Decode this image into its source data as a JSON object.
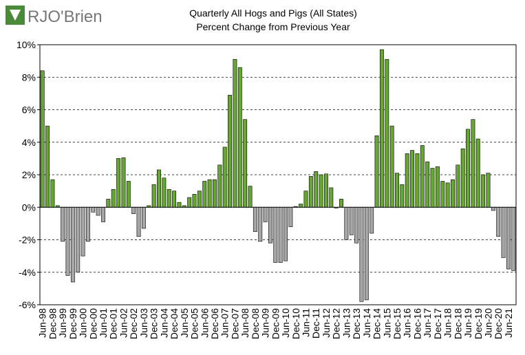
{
  "logo": "RJO'Brien",
  "chart_data": {
    "type": "bar",
    "title": "Quarterly All Hogs and Pigs (All States)",
    "subtitle": "Percent Change from Previous Year",
    "categories": [
      "Jun-98",
      null,
      "Dec-98",
      null,
      "Jun-99",
      null,
      "Dec-99",
      null,
      "Jun-00",
      null,
      "Dec-00",
      null,
      "Jun-01",
      null,
      "Dec-01",
      null,
      "Jun-02",
      null,
      "Dec-02",
      null,
      "Jun-03",
      null,
      "Dec-03",
      null,
      "Jun-04",
      null,
      "Dec-04",
      null,
      "Jun-05",
      null,
      "Dec-05",
      null,
      "Jun-06",
      null,
      "Dec-06",
      null,
      "Jun-07",
      null,
      "Dec-07",
      null,
      "Jun-08",
      null,
      "Dec-08",
      null,
      "Jun-09",
      null,
      "Dec-09",
      null,
      "Jun-10",
      null,
      "Dec-10",
      null,
      "Jun-11",
      null,
      "Dec-11",
      null,
      "Jun-12",
      null,
      "Dec-12",
      null,
      "Jun-13",
      null,
      "Dec-13",
      null,
      "Jun-14",
      null,
      "Dec-14",
      null,
      "Jun-15",
      null,
      "Dec-15",
      null,
      "Jun-16",
      null,
      "Dec-16",
      null,
      "Jun-17",
      null,
      "Dec-17",
      null,
      "Jun-18",
      null,
      "Dec-18",
      null,
      "Jun-19",
      null,
      "Dec-19",
      null,
      "Jun-20",
      null,
      "Dec-20",
      null,
      "Jun-21",
      null
    ],
    "values": [
      8.4,
      5.0,
      1.7,
      0.1,
      -2.1,
      -4.2,
      -4.6,
      -4.0,
      -3.0,
      -2.1,
      -0.3,
      -0.5,
      -0.9,
      0.5,
      1.1,
      3.0,
      3.05,
      1.6,
      -0.4,
      -1.8,
      -1.3,
      0.1,
      1.4,
      2.3,
      1.8,
      1.1,
      1.0,
      0.3,
      0.1,
      0.6,
      0.8,
      1.0,
      1.6,
      1.7,
      1.7,
      2.6,
      3.7,
      6.9,
      9.1,
      8.6,
      5.4,
      1.3,
      -1.5,
      -2.1,
      -0.9,
      -2.2,
      -3.4,
      -3.4,
      -3.3,
      -1.2,
      0.05,
      0.2,
      1.0,
      1.9,
      2.2,
      2.0,
      2.05,
      1.2,
      -0.05,
      0.5,
      -2.0,
      -1.7,
      -2.2,
      -5.8,
      -5.7,
      -1.6,
      4.4,
      9.7,
      9.1,
      5.0,
      2.1,
      1.4,
      3.3,
      3.5,
      3.3,
      3.8,
      2.8,
      2.4,
      2.5,
      1.6,
      1.5,
      1.7,
      2.6,
      3.6,
      4.8,
      5.4,
      4.2,
      2.0,
      2.1,
      -0.2,
      -1.8,
      -3.1,
      -3.8,
      -3.9
    ],
    "positive_color": "#66a632",
    "negative_color": "#a6a6a6",
    "ylim": [
      -6,
      10
    ],
    "yticks": [
      {
        "value": -6,
        "label": "-6%"
      },
      {
        "value": -4,
        "label": "-4%"
      },
      {
        "value": -2,
        "label": "-2%"
      },
      {
        "value": 0,
        "label": "0%"
      },
      {
        "value": 2,
        "label": "2%"
      },
      {
        "value": 4,
        "label": "4%"
      },
      {
        "value": 6,
        "label": "6%"
      },
      {
        "value": 8,
        "label": "8%"
      },
      {
        "value": 10,
        "label": "10%"
      }
    ],
    "grid": true
  }
}
